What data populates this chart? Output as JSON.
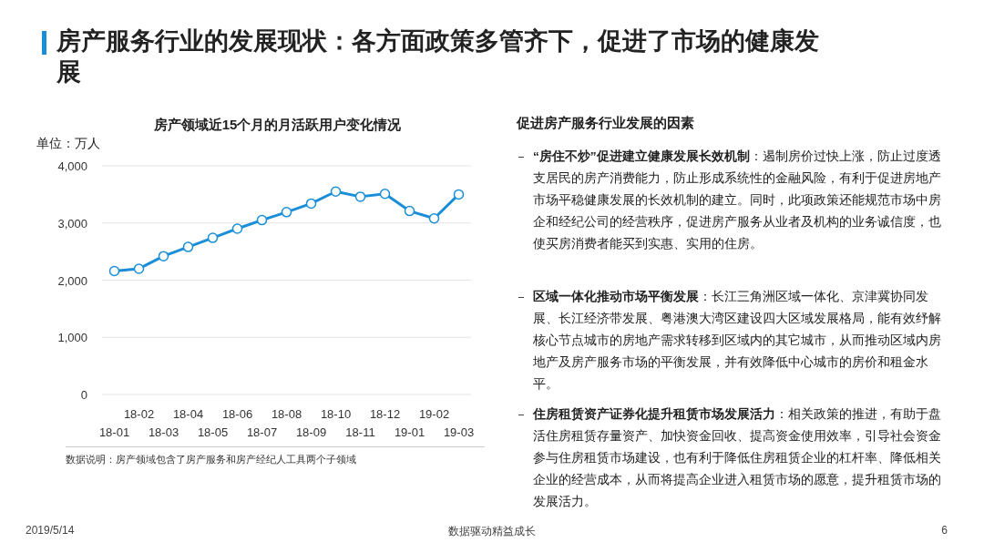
{
  "chart_data": {
    "type": "line",
    "title": "房产服务行业的发展现状：各方面政策多管齐下，促进了市场的健康发展",
    "subtitle": "房产领域近15个月的月活跃用户变化情况",
    "ylabel": "单位：万人",
    "categories": [
      "18-01",
      "18-02",
      "18-03",
      "18-04",
      "18-05",
      "18-06",
      "18-07",
      "18-08",
      "18-09",
      "18-10",
      "18-11",
      "18-12",
      "19-01",
      "19-02",
      "19-03"
    ],
    "series": [
      {
        "color": "#1a8fd8",
        "values": [
          2160,
          2200,
          2420,
          2580,
          2740,
          2900,
          3050,
          3190,
          3340,
          3550,
          3460,
          3510,
          3210,
          3080,
          3500
        ]
      }
    ],
    "ylim": [
      0,
      4000
    ],
    "yticks": [
      0,
      {
        "value": 1000,
        "label": "1,000"
      },
      {
        "value": 2000,
        "label": "2,000"
      },
      {
        "value": 3000,
        "label": "3,000"
      },
      {
        "value": 4000,
        "label": "4,000"
      }
    ],
    "grid": "y",
    "marker": "circle",
    "line_style": "solid",
    "annotations": [
      "数据说明：房产领域包含了房产服务和房产经纪人工具两个子领域",
      "促进房产服务行业发展的因素",
      "“房住不炒”促进建立健康发展长效机制：遏制房价过快上涨，防止过度透支居民的房产消费能力，防止形成系统性的金融风险，有利于促进房地产市场平稳健康发展的长效机制的建立。同时，此项政策还能规范市场中房企和经纪公司的经营秩序，促进房产服务从业者及机构的业务诚信度，也使买房消费者能买到实惠、实用的住房。",
      "区域一体化推动市场平衡发展：长江三角洲区域一体化、京津冀协同发展、长江经济带发展、粤港澳大湾区建设四大区域发展格局，能有效纾解核心节点城市的房地产需求转移到区域内的其它城市，从而推动区域内房地产及房产服务市场的平衡发展，并有效降低中心城市的房价和租金水平。",
      "住房租赁资产证券化提升租赁市场发展活力：相关政策的推进，有助于盘活住房租赁存量资产、加快资金回收、提高资金使用效率，引导社会资金参与住房租赁市场建设，也有利于降低住房租赁企业的杠杆率、降低相关企业的经营成本，从而将提高企业进入租赁市场的愿意，提升租赁市场的发展活力。",
      "2019/5/14",
      "数据驱动精益成长",
      "6"
    ]
  }
}
